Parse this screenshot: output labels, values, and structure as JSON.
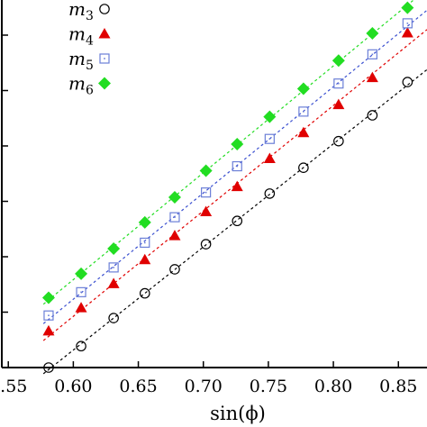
{
  "chart_data": {
    "type": "scatter",
    "xlabel": "sin(ϕ)",
    "ylabel": "",
    "xlim": [
      0.545,
      0.872
    ],
    "ylim": [
      0,
      1
    ],
    "x_ticks": [
      "0.55",
      "0.60",
      "0.65",
      "0.70",
      "0.75",
      "0.80",
      "0.85"
    ],
    "x_tick_values": [
      0.55,
      0.6,
      0.65,
      0.7,
      0.75,
      0.8,
      0.85
    ],
    "y_tick_values": [
      0.0,
      0.15,
      0.3,
      0.45,
      0.6,
      0.75,
      0.9
    ],
    "grid": false,
    "legend_position": "top-left",
    "x": [
      0.581,
      0.606,
      0.631,
      0.655,
      0.678,
      0.702,
      0.726,
      0.751,
      0.777,
      0.804,
      0.83,
      0.857
    ],
    "series": [
      {
        "name": "m",
        "sub": "3",
        "marker": "circle",
        "color": "#000000",
        "line_color": "#000000",
        "values": [
          0.0,
          0.058,
          0.134,
          0.201,
          0.266,
          0.334,
          0.397,
          0.471,
          0.541,
          0.613,
          0.683,
          0.773
        ]
      },
      {
        "name": "m",
        "sub": "4",
        "marker": "triangle",
        "color": "#e00000",
        "line_color": "#e00000",
        "values": [
          0.099,
          0.162,
          0.227,
          0.292,
          0.357,
          0.422,
          0.49,
          0.566,
          0.636,
          0.712,
          0.785,
          0.906
        ]
      },
      {
        "name": "m",
        "sub": "5",
        "marker": "square",
        "color": "#6b7fd7",
        "line_color": "#3a4fd0",
        "values": [
          0.141,
          0.204,
          0.271,
          0.338,
          0.407,
          0.474,
          0.545,
          0.619,
          0.693,
          0.769,
          0.848,
          0.932
        ]
      },
      {
        "name": "m",
        "sub": "6",
        "marker": "diamond",
        "color": "#22dd22",
        "line_color": "#22dd22",
        "values": [
          0.189,
          0.254,
          0.322,
          0.393,
          0.461,
          0.533,
          0.605,
          0.679,
          0.755,
          0.831,
          0.905,
          0.974
        ]
      }
    ]
  }
}
